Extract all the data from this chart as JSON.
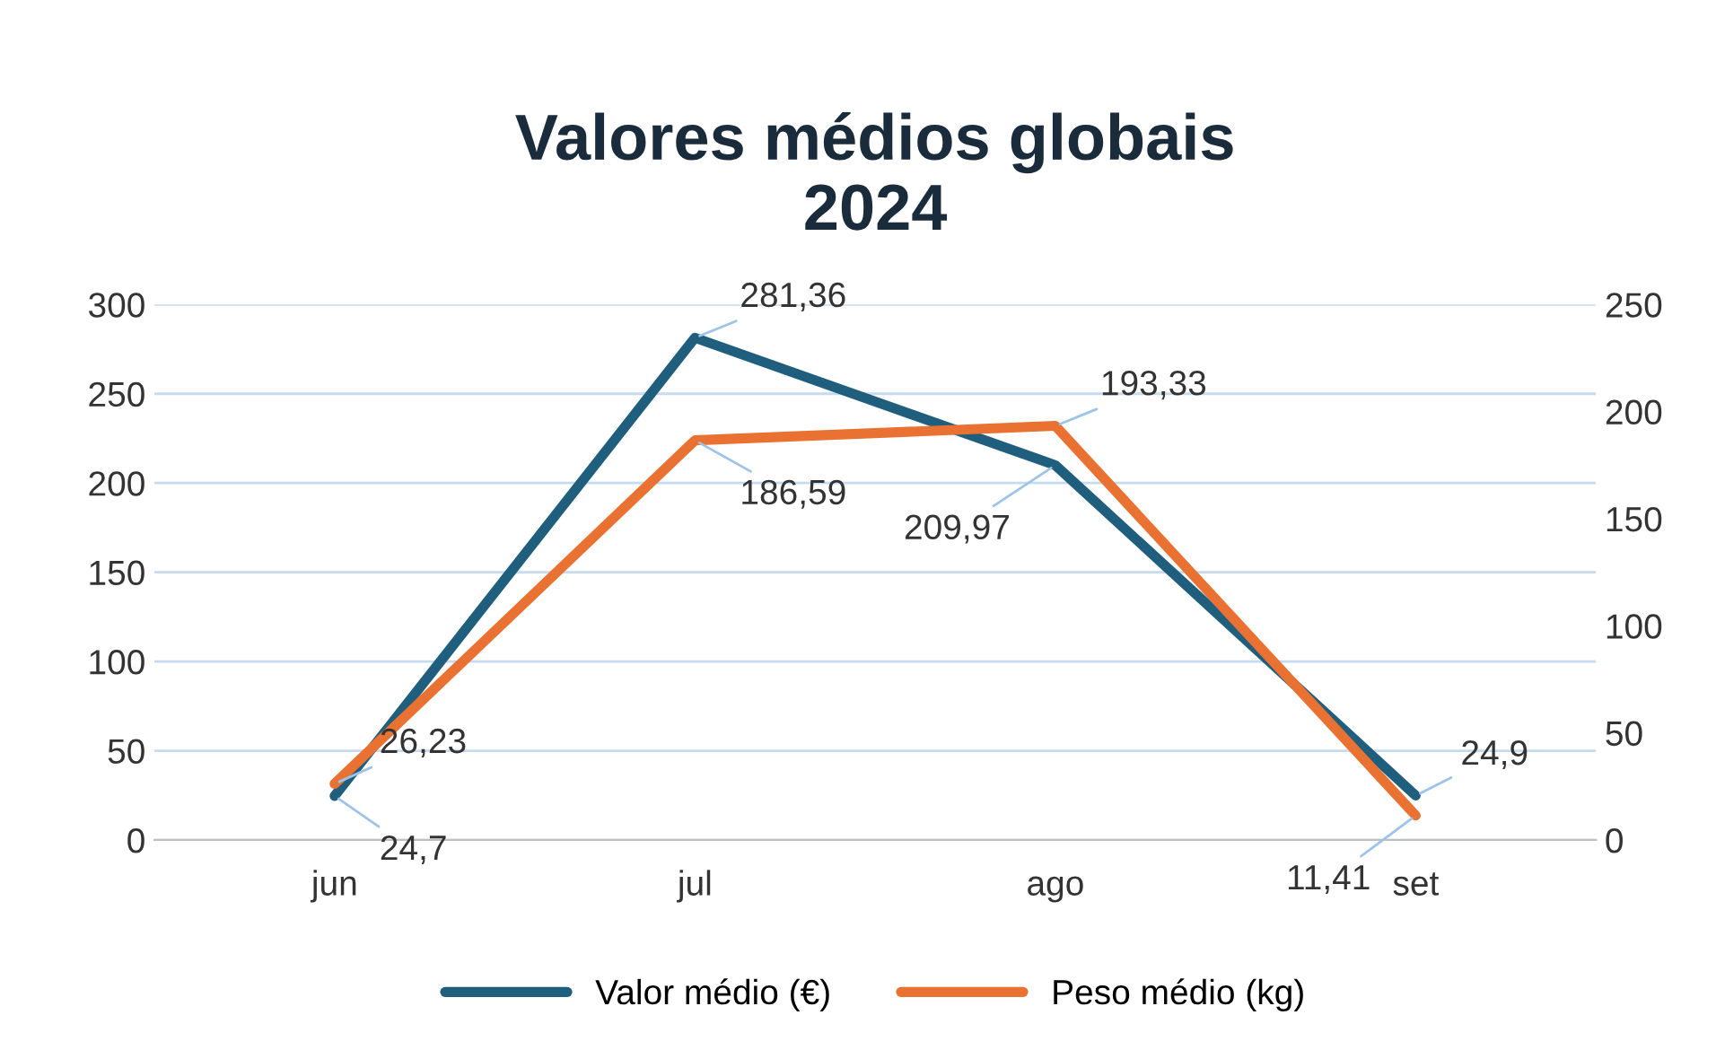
{
  "chart_data": {
    "type": "line",
    "title": "Valores médios globais\n2024",
    "categories": [
      "jun",
      "jul",
      "ago",
      "set"
    ],
    "series": [
      {
        "name": "Valor médio (€)",
        "color": "#1f5f7d",
        "values": [
          24.7,
          281.36,
          209.97,
          24.9
        ],
        "value_labels": [
          "24,7",
          "281,36",
          "209,97",
          "24,9"
        ]
      },
      {
        "name": "Peso médio (kg)",
        "color": "#e97132",
        "axis": "y2",
        "values": [
          26.23,
          186.59,
          193.33,
          11.41
        ],
        "value_labels": [
          "26,23",
          "186,59",
          "193,33",
          "11,41"
        ]
      }
    ],
    "ylim": [
      0,
      300
    ],
    "yticks": [
      0,
      50,
      100,
      150,
      200,
      250,
      300
    ],
    "y2lim": [
      0,
      250
    ],
    "y2ticks": [
      0,
      50,
      100,
      150,
      200,
      250
    ],
    "grid": "y",
    "legend": "bottom",
    "marker": "none",
    "line_style": "solid"
  }
}
